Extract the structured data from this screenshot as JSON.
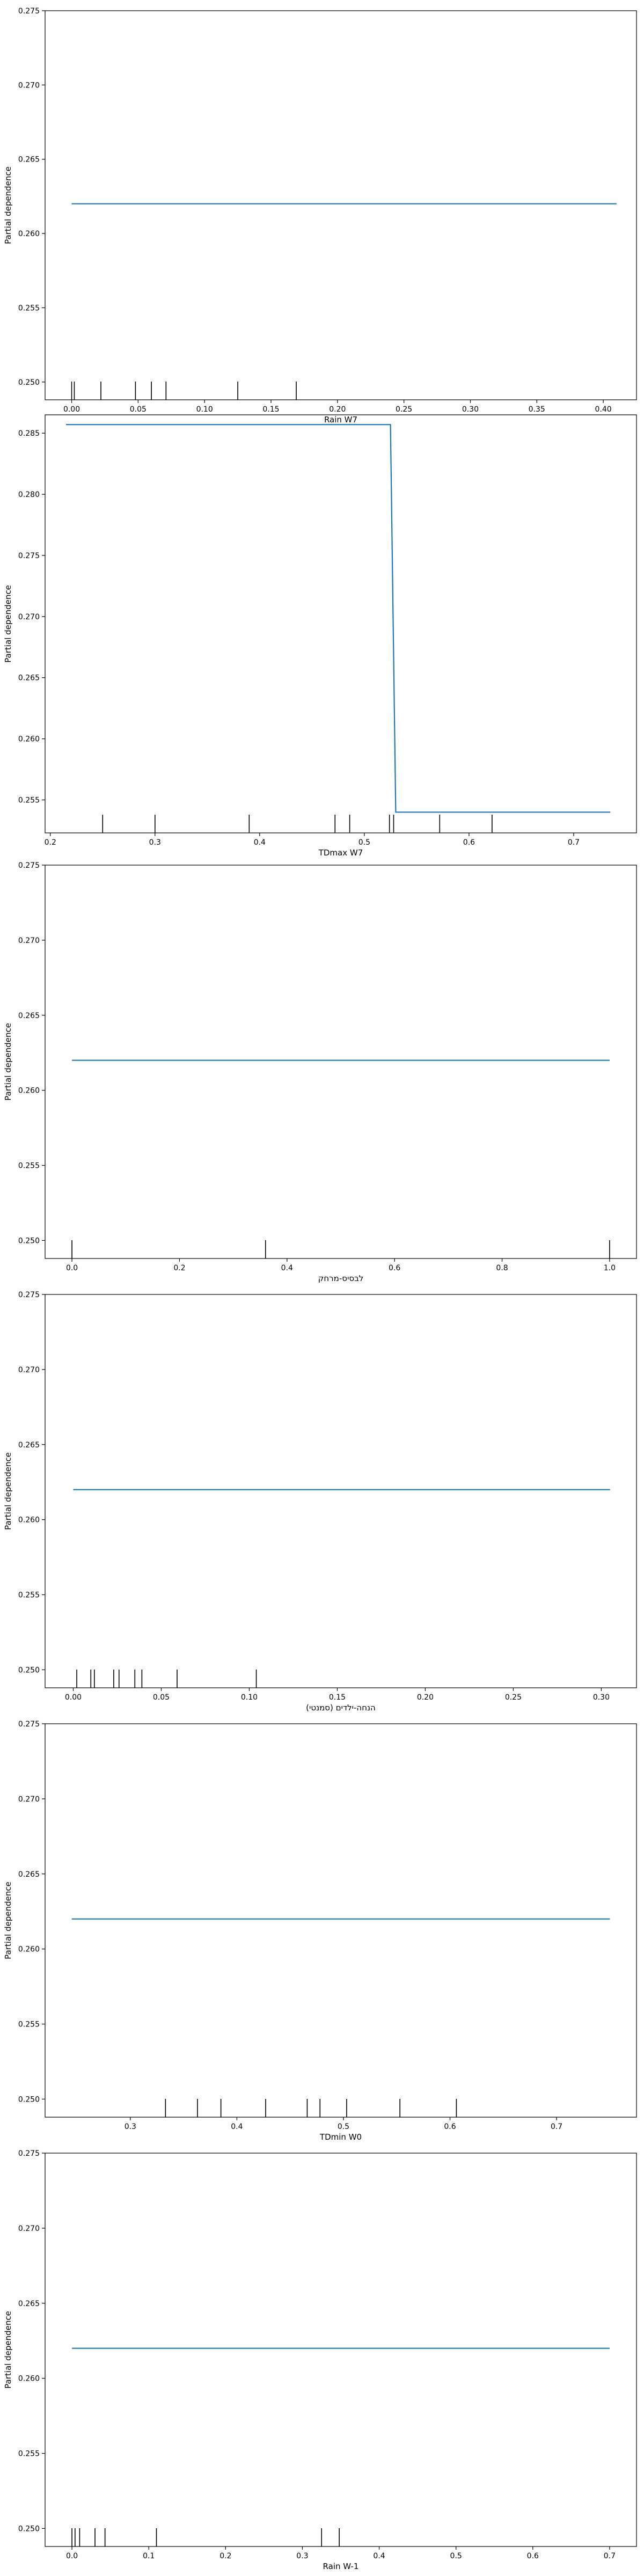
{
  "colors": {
    "line": "#1f77b4",
    "axes": "#000000",
    "rug": "#000000",
    "background": "#ffffff"
  },
  "chart_data": [
    {
      "type": "line",
      "title": "",
      "xlabel": "Rain W7",
      "ylabel": "Partial dependence",
      "xlim": [
        -0.02,
        0.425
      ],
      "ylim": [
        0.2488,
        0.275
      ],
      "xticks": [
        0.0,
        0.05,
        0.1,
        0.15,
        0.2,
        0.25,
        0.3,
        0.35,
        0.4
      ],
      "xtick_labels": [
        "0.00",
        "0.05",
        "0.10",
        "0.15",
        "0.20",
        "0.25",
        "0.30",
        "0.35",
        "0.40"
      ],
      "yticks": [
        0.25,
        0.255,
        0.26,
        0.265,
        0.27,
        0.275
      ],
      "ytick_labels": [
        "0.250",
        "0.255",
        "0.260",
        "0.265",
        "0.270",
        "0.275"
      ],
      "grid": false,
      "x": [
        0.0,
        0.41
      ],
      "y": [
        0.262,
        0.262
      ],
      "rug": [
        0.0,
        0.002,
        0.022,
        0.048,
        0.06,
        0.071,
        0.125,
        0.169
      ]
    },
    {
      "type": "line",
      "title": "",
      "xlabel": "TDmax W7",
      "ylabel": "Partial dependence",
      "xlim": [
        0.195,
        0.76
      ],
      "ylim": [
        0.2523,
        0.2865
      ],
      "xticks": [
        0.2,
        0.3,
        0.4,
        0.5,
        0.6,
        0.7
      ],
      "xtick_labels": [
        "0.2",
        "0.3",
        "0.4",
        "0.5",
        "0.6",
        "0.7"
      ],
      "yticks": [
        0.255,
        0.26,
        0.265,
        0.27,
        0.275,
        0.28,
        0.285
      ],
      "ytick_labels": [
        "0.255",
        "0.260",
        "0.265",
        "0.270",
        "0.275",
        "0.280",
        "0.285"
      ],
      "grid": false,
      "x": [
        0.215,
        0.525,
        0.53,
        0.735
      ],
      "y": [
        0.2857,
        0.2857,
        0.254,
        0.254
      ],
      "rug": [
        0.25,
        0.3,
        0.39,
        0.472,
        0.486,
        0.524,
        0.528,
        0.572,
        0.622
      ]
    },
    {
      "type": "line",
      "title": "",
      "xlabel": "לבסיס-מרחק",
      "ylabel": "Partial dependence",
      "xlim": [
        -0.05,
        1.05
      ],
      "ylim": [
        0.2488,
        0.275
      ],
      "xticks": [
        0.0,
        0.2,
        0.4,
        0.6,
        0.8,
        1.0
      ],
      "xtick_labels": [
        "0.0",
        "0.2",
        "0.4",
        "0.6",
        "0.8",
        "1.0"
      ],
      "yticks": [
        0.25,
        0.255,
        0.26,
        0.265,
        0.27,
        0.275
      ],
      "ytick_labels": [
        "0.250",
        "0.255",
        "0.260",
        "0.265",
        "0.270",
        "0.275"
      ],
      "grid": false,
      "x": [
        0.0,
        1.0
      ],
      "y": [
        0.262,
        0.262
      ],
      "rug": [
        0.0,
        0.36,
        1.0
      ]
    },
    {
      "type": "line",
      "title": "",
      "xlabel": "(סמנטי) הנחה-ילדים",
      "ylabel": "Partial dependence",
      "xlim": [
        -0.016,
        0.32
      ],
      "ylim": [
        0.2488,
        0.275
      ],
      "xticks": [
        0.0,
        0.05,
        0.1,
        0.15,
        0.2,
        0.25,
        0.3
      ],
      "xtick_labels": [
        "0.00",
        "0.05",
        "0.10",
        "0.15",
        "0.20",
        "0.25",
        "0.30"
      ],
      "yticks": [
        0.25,
        0.255,
        0.26,
        0.265,
        0.27,
        0.275
      ],
      "ytick_labels": [
        "0.250",
        "0.255",
        "0.260",
        "0.265",
        "0.270",
        "0.275"
      ],
      "grid": false,
      "x": [
        0.0,
        0.305
      ],
      "y": [
        0.262,
        0.262
      ],
      "rug": [
        0.002,
        0.01,
        0.012,
        0.023,
        0.026,
        0.035,
        0.039,
        0.059,
        0.104
      ]
    },
    {
      "type": "line",
      "title": "",
      "xlabel": "TDmin W0",
      "ylabel": "Partial dependence",
      "xlim": [
        0.22,
        0.775
      ],
      "ylim": [
        0.2488,
        0.275
      ],
      "xticks": [
        0.3,
        0.4,
        0.5,
        0.6,
        0.7
      ],
      "xtick_labels": [
        "0.3",
        "0.4",
        "0.5",
        "0.6",
        "0.7"
      ],
      "yticks": [
        0.25,
        0.255,
        0.26,
        0.265,
        0.27,
        0.275
      ],
      "ytick_labels": [
        "0.250",
        "0.255",
        "0.260",
        "0.265",
        "0.270",
        "0.275"
      ],
      "grid": false,
      "x": [
        0.245,
        0.75
      ],
      "y": [
        0.262,
        0.262
      ],
      "rug": [
        0.333,
        0.363,
        0.385,
        0.427,
        0.466,
        0.478,
        0.503,
        0.553,
        0.606
      ]
    },
    {
      "type": "line",
      "title": "",
      "xlabel": "Rain W-1",
      "ylabel": "Partial dependence",
      "xlim": [
        -0.035,
        0.735
      ],
      "ylim": [
        0.2488,
        0.275
      ],
      "xticks": [
        0.0,
        0.1,
        0.2,
        0.3,
        0.4,
        0.5,
        0.6,
        0.7
      ],
      "xtick_labels": [
        "0.0",
        "0.1",
        "0.2",
        "0.3",
        "0.4",
        "0.5",
        "0.6",
        "0.7"
      ],
      "yticks": [
        0.25,
        0.255,
        0.26,
        0.265,
        0.27,
        0.275
      ],
      "ytick_labels": [
        "0.250",
        "0.255",
        "0.260",
        "0.265",
        "0.270",
        "0.275"
      ],
      "grid": false,
      "x": [
        0.0,
        0.7
      ],
      "y": [
        0.262,
        0.262
      ],
      "rug": [
        0.0,
        0.004,
        0.01,
        0.03,
        0.043,
        0.11,
        0.325,
        0.348
      ]
    }
  ]
}
